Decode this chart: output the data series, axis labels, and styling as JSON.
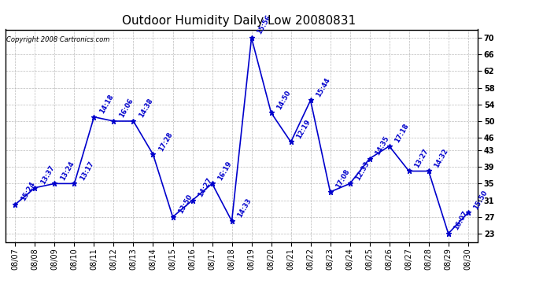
{
  "title": "Outdoor Humidity Daily Low 20080831",
  "copyright": "Copyright 2008 Cartronics.com",
  "x_labels": [
    "08/07",
    "08/08",
    "08/09",
    "08/10",
    "08/11",
    "08/12",
    "08/13",
    "08/14",
    "08/15",
    "08/16",
    "08/17",
    "08/18",
    "08/19",
    "08/20",
    "08/21",
    "08/22",
    "08/23",
    "08/24",
    "08/25",
    "08/26",
    "08/27",
    "08/28",
    "08/29",
    "08/30"
  ],
  "y_values": [
    30,
    34,
    35,
    35,
    51,
    50,
    50,
    42,
    27,
    31,
    35,
    26,
    70,
    52,
    45,
    55,
    33,
    35,
    41,
    44,
    38,
    38,
    23,
    28
  ],
  "time_labels": [
    "15:24",
    "13:37",
    "13:24",
    "13:17",
    "14:18",
    "16:06",
    "14:38",
    "17:28",
    "13:50",
    "14:27",
    "16:19",
    "14:33",
    "15:56",
    "14:50",
    "12:19",
    "15:44",
    "17:08",
    "12:33",
    "14:35",
    "17:18",
    "13:27",
    "14:32",
    "16:07",
    "15:50"
  ],
  "line_color": "#0000cc",
  "marker": "*",
  "marker_size": 5,
  "ylim_min": 21,
  "ylim_max": 72,
  "ytick_vals": [
    23,
    27,
    31,
    35,
    39,
    43,
    46,
    50,
    54,
    58,
    62,
    66,
    70
  ],
  "ytick_labels": [
    "23",
    "27",
    "31",
    "35",
    "39",
    "43",
    "46",
    "50",
    "54",
    "58",
    "62",
    "66",
    "70"
  ],
  "grid_color": "#aaaaaa",
  "bg_color": "#ffffff",
  "title_fontsize": 11,
  "label_fontsize": 6,
  "copyright_fontsize": 6,
  "tick_fontsize": 7,
  "xtick_fontsize": 7
}
